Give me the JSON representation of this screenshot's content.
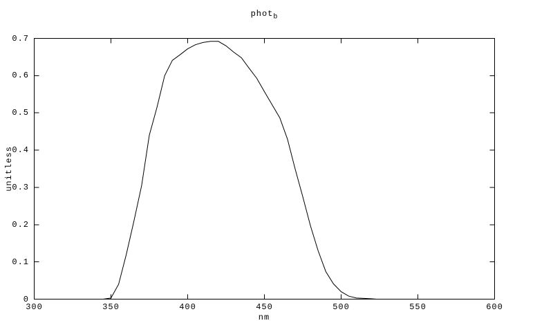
{
  "figure": {
    "background": "#ffffff",
    "text_color": "#000000"
  },
  "chart_data": {
    "type": "line",
    "title": "phot_b",
    "title_main": "phot",
    "title_sub": "b",
    "xlabel": "nm",
    "ylabel": "unitless",
    "xlim": [
      300,
      600
    ],
    "ylim": [
      0,
      0.7
    ],
    "xticks": [
      300,
      350,
      400,
      450,
      500,
      550,
      600
    ],
    "xtick_labels": [
      "300",
      "350",
      "400",
      "450",
      "500",
      "550",
      "600"
    ],
    "yticks": [
      0,
      0.1,
      0.2,
      0.3,
      0.4,
      0.5,
      0.6,
      0.7
    ],
    "ytick_labels": [
      "0",
      "0.1",
      "0.2",
      "0.3",
      "0.4",
      "0.5",
      "0.6",
      "0.7"
    ],
    "grid": false,
    "legend": "none",
    "axis_color": "#000000",
    "line_color": "#000000",
    "series": [
      {
        "name": "phot_b",
        "x": [
          345,
          350,
          355,
          360,
          365,
          370,
          375,
          380,
          385,
          390,
          395,
          400,
          405,
          410,
          415,
          420,
          425,
          430,
          435,
          440,
          445,
          450,
          455,
          460,
          465,
          470,
          475,
          480,
          485,
          490,
          495,
          500,
          505,
          510,
          515,
          520,
          523
        ],
        "y": [
          0.0,
          0.003,
          0.04,
          0.12,
          0.21,
          0.305,
          0.44,
          0.515,
          0.6,
          0.641,
          0.656,
          0.672,
          0.683,
          0.689,
          0.692,
          0.692,
          0.68,
          0.663,
          0.648,
          0.62,
          0.593,
          0.557,
          0.522,
          0.487,
          0.43,
          0.35,
          0.275,
          0.197,
          0.13,
          0.074,
          0.041,
          0.02,
          0.008,
          0.003,
          0.002,
          0.001,
          0.0
        ]
      }
    ]
  }
}
